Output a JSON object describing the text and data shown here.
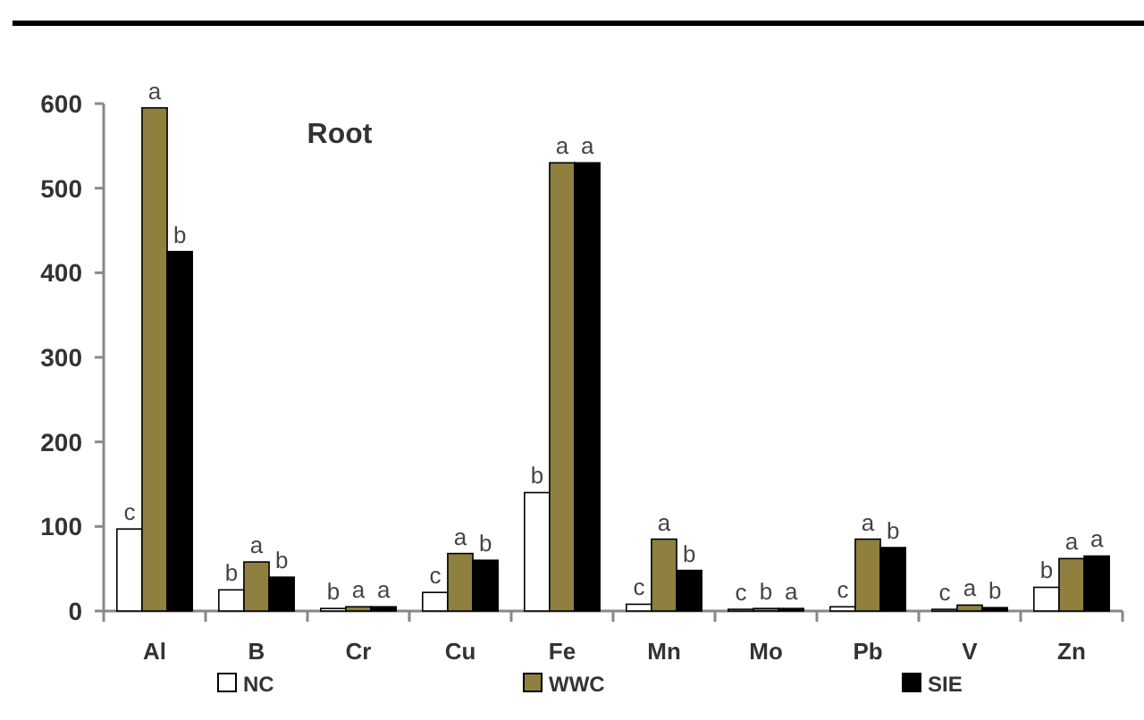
{
  "chart_data": {
    "type": "bar",
    "title": "Root",
    "categories": [
      "Al",
      "B",
      "Cr",
      "Cu",
      "Fe",
      "Mn",
      "Mo",
      "Pb",
      "V",
      "Zn"
    ],
    "series": [
      {
        "name": "NC",
        "color": "#ffffff",
        "values": [
          97,
          25,
          3,
          22,
          140,
          8,
          2,
          5,
          2,
          28
        ],
        "value_labels": [
          "c",
          "b",
          "b",
          "c",
          "b",
          "c",
          "c",
          "c",
          "c",
          "b"
        ]
      },
      {
        "name": "WWC",
        "color": "#8f8040",
        "values": [
          595,
          58,
          5,
          68,
          530,
          85,
          3,
          85,
          7,
          62
        ],
        "value_labels": [
          "a",
          "a",
          "a",
          "a",
          "a",
          "a",
          "b",
          "a",
          "a",
          "a"
        ]
      },
      {
        "name": "SIE",
        "color": "#000000",
        "values": [
          425,
          40,
          5,
          60,
          530,
          48,
          3,
          75,
          4,
          65
        ],
        "value_labels": [
          "b",
          "b",
          "a",
          "b",
          "a",
          "b",
          "a",
          "b",
          "b",
          "a"
        ]
      }
    ],
    "ylim": [
      0,
      600
    ],
    "yticks": [
      0,
      100,
      200,
      300,
      400,
      500,
      600
    ],
    "legend": "bottom"
  }
}
